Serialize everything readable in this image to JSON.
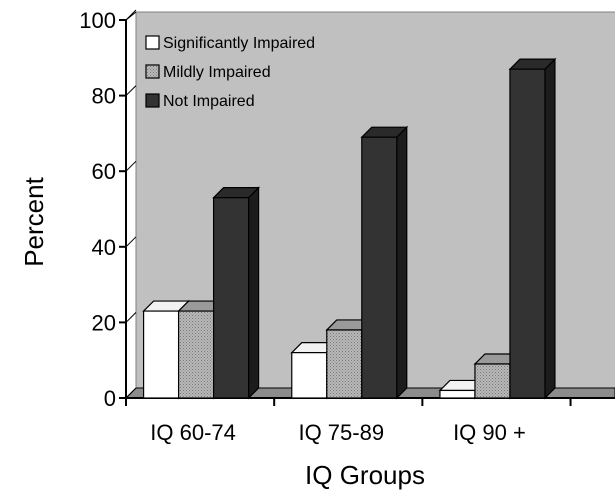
{
  "chart_data": {
    "type": "bar",
    "title": "",
    "xlabel": "IQ Groups",
    "ylabel": "Percent",
    "ylim": [
      0,
      100
    ],
    "y_ticks": [
      "0",
      "20",
      "40",
      "60",
      "80",
      "100"
    ],
    "categories": [
      "IQ 60-74",
      "IQ 75-89",
      "IQ 90 +"
    ],
    "series": [
      {
        "name": "Significantly Impaired",
        "values": [
          23,
          12,
          2
        ],
        "color": "#ffffff"
      },
      {
        "name": "Mildly Impaired",
        "values": [
          23,
          18,
          9
        ],
        "color": "#a6a6a6"
      },
      {
        "name": "Not Impaired",
        "values": [
          53,
          69,
          87
        ],
        "color": "#333333"
      }
    ],
    "grid": false,
    "legend_position": "top-left",
    "background_color": "#c0c0c0",
    "style": "3d-bar"
  }
}
